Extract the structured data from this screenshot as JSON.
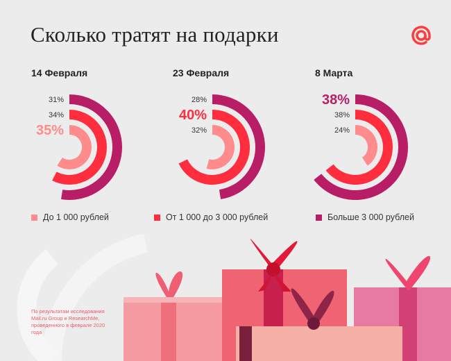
{
  "title": "Сколько тратят на подарки",
  "logo_icon": "mail-ru-at-icon",
  "colors": {
    "low": "#ff8c8c",
    "mid": "#ff2e3f",
    "high": "#b81e66",
    "background": "#ececec"
  },
  "legend": [
    "До 1 000 рублей",
    "От 1 000 до 3 000 рублей",
    "Больше 3 000 рублей"
  ],
  "note": "По результатам исследования Mail.ru Group и ResearchMe, проведенного в феврале 2020 года",
  "chart_data": [
    {
      "type": "radial-bar",
      "title": "14 Февраля",
      "categories": [
        "До 1 000 рублей",
        "От 1 000 до 3 000 рублей",
        "Больше 3 000 рублей"
      ],
      "values": [
        35,
        34,
        31
      ],
      "labels": [
        "35%",
        "34%",
        "31%"
      ],
      "highlight": 0
    },
    {
      "type": "radial-bar",
      "title": "23 Февраля",
      "categories": [
        "До 1 000 рублей",
        "От 1 000 до 3 000 рублей",
        "Больше 3 000 рублей"
      ],
      "values": [
        32,
        40,
        28
      ],
      "labels": [
        "32%",
        "40%",
        "28%"
      ],
      "highlight": 1
    },
    {
      "type": "radial-bar",
      "title": "8 Марта",
      "categories": [
        "До 1 000 рублей",
        "От 1 000 до 3 000 рублей",
        "Больше 3 000 рублей"
      ],
      "values": [
        24,
        38,
        38
      ],
      "labels": [
        "24%",
        "38%",
        "38%"
      ],
      "highlight": 2
    }
  ]
}
